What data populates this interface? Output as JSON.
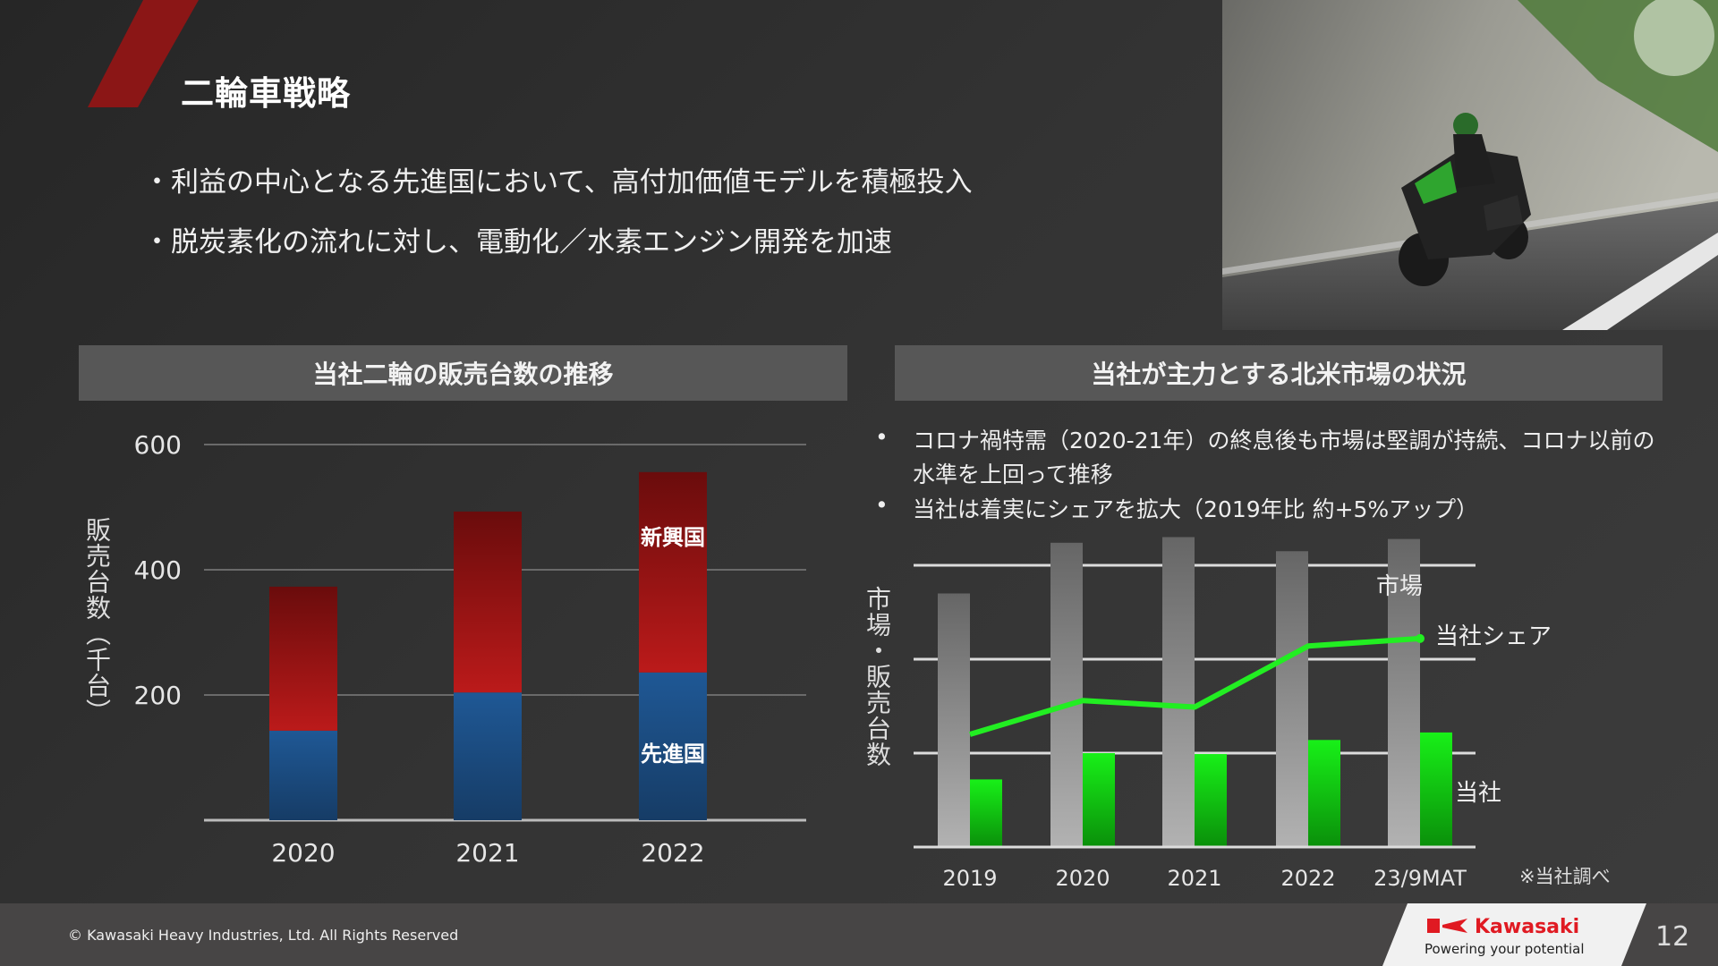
{
  "slide": {
    "title": "二輪車戦略",
    "bullets": [
      "・利益の中心となる先進国において、高付加価値モデルを積極投入",
      "・脱炭素化の流れに対し、電動化／水素エンジン開発を加速"
    ],
    "accent_color": "#8b1616"
  },
  "left_section": {
    "header": "当社二輪の販売台数の推移"
  },
  "right_section": {
    "header": "当社が主力とする北米市場の状況",
    "bullet_mark": "•",
    "bullets": [
      "コロナ禍特需（2020-21年）の終息後も市場は堅調が持続、コロナ以前の水準を上回って推移",
      "当社は着実にシェアを拡大（2019年比 約+5%アップ）"
    ],
    "note": "※当社調べ"
  },
  "chart_data": [
    {
      "type": "bar",
      "stacked": true,
      "title": "当社二輪の販売台数の推移",
      "ylabel": "販売台数（千台）",
      "xlabel": "",
      "categories": [
        "2020",
        "2021",
        "2022"
      ],
      "yticks": [
        "200",
        "400",
        "600"
      ],
      "ylim": [
        0,
        600
      ],
      "grid": true,
      "series": [
        {
          "name": "先進国",
          "values": [
            143,
            204,
            236
          ],
          "color": "#1d4f86"
        },
        {
          "name": "新興国",
          "values": [
            230,
            289,
            320
          ],
          "color": "#a51616"
        }
      ],
      "inline_labels": [
        "新興国",
        "先進国"
      ]
    },
    {
      "type": "bar+line",
      "title": "当社が主力とする北米市場の状況",
      "ylabel": "市場・販売台数",
      "categories": [
        "2019",
        "2020",
        "2021",
        "2022",
        "23/9MAT"
      ],
      "ylim": [
        0,
        3.6
      ],
      "grid": true,
      "axis_unlabeled": true,
      "series": [
        {
          "name": "市場",
          "kind": "bar",
          "values": [
            2.7,
            3.24,
            3.3,
            3.15,
            3.28
          ],
          "color": "#9a9a9a"
        },
        {
          "name": "当社",
          "kind": "bar",
          "values": [
            0.72,
            1.0,
            0.99,
            1.14,
            1.22
          ],
          "color": "#16e016"
        },
        {
          "name": "当社シェア",
          "kind": "line",
          "values": [
            1.2,
            1.56,
            1.49,
            2.14,
            2.22
          ],
          "color": "#22ee22"
        }
      ]
    }
  ],
  "footer": {
    "copyright": "© Kawasaki Heavy Industries, Ltd. All Rights Reserved",
    "logo_name": "Kawasaki",
    "logo_tagline": "Powering your potential",
    "page_number": "12"
  }
}
